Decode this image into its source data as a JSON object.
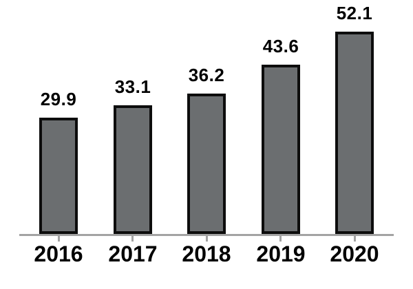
{
  "chart_data": {
    "type": "bar",
    "categories": [
      "2016",
      "2017",
      "2018",
      "2019",
      "2020"
    ],
    "values": [
      29.9,
      33.1,
      36.2,
      43.6,
      52.1
    ],
    "data_labels": [
      "29.9",
      "33.1",
      "36.2",
      "43.6",
      "52.1"
    ],
    "title": "",
    "xlabel": "",
    "ylabel": "",
    "ylim": [
      0,
      60
    ],
    "grid": false,
    "legend": null,
    "colors": {
      "bar_fill": "#6b6e70",
      "bar_border": "#0d0d0d",
      "axis_line": "#a3a3a3",
      "tick": "#a3a3a3",
      "label_text": "#000000",
      "background": "#ffffff"
    }
  }
}
